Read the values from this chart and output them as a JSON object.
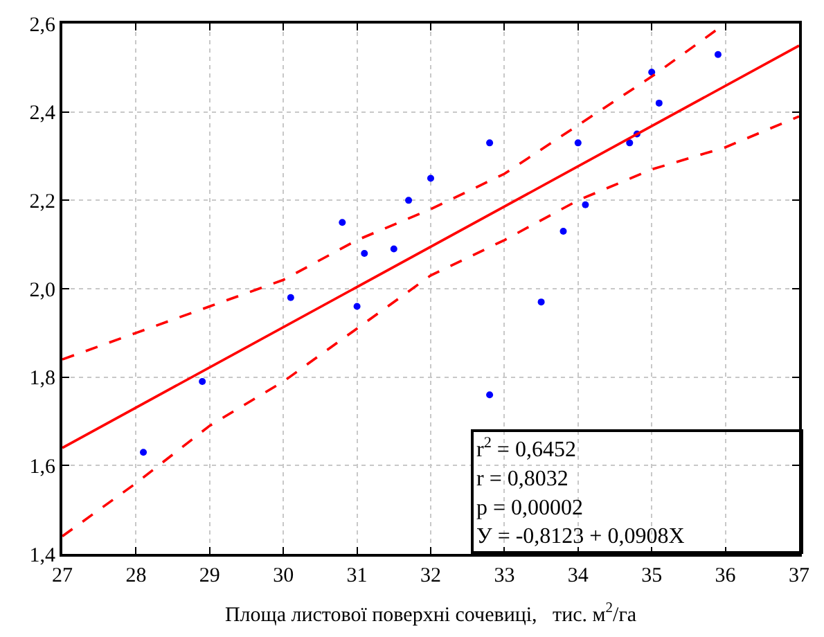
{
  "chart_data": {
    "type": "scatter",
    "xlabel": "Площа листової поверхні сочевиці,   тис. м$^{2}$/га",
    "xlim": [
      27,
      37
    ],
    "xticks": [
      27,
      28,
      29,
      30,
      31,
      32,
      33,
      34,
      35,
      36,
      37
    ],
    "ylim": [
      1.4,
      2.6
    ],
    "yticks": [
      {
        "value": 1.4,
        "label": "1,4"
      },
      {
        "value": 1.6,
        "label": "1,6"
      },
      {
        "value": 1.8,
        "label": "1,8"
      },
      {
        "value": 2.0,
        "label": "2,0"
      },
      {
        "value": 2.2,
        "label": "2,2"
      },
      {
        "value": 2.4,
        "label": "2,4"
      },
      {
        "value": 2.6,
        "label": "2,6"
      }
    ],
    "grid": true,
    "series": [
      {
        "marker": "circle",
        "color": "#0000ff",
        "x": [
          28.1,
          28.9,
          30.1,
          30.8,
          31.0,
          31.1,
          31.5,
          31.7,
          32.0,
          32.8,
          32.8,
          33.5,
          33.8,
          34.0,
          34.1,
          34.7,
          34.8,
          35.0,
          35.1,
          35.9
        ],
        "values": [
          1.63,
          1.79,
          1.98,
          2.15,
          1.96,
          2.08,
          2.09,
          2.2,
          2.25,
          2.33,
          1.76,
          1.97,
          2.13,
          2.33,
          2.19,
          2.33,
          2.35,
          2.49,
          2.42,
          2.53
        ]
      },
      {
        "type": "line",
        "line_style": "solid",
        "color": "#ff0000",
        "x": [
          27,
          37
        ],
        "values": [
          1.64,
          2.55
        ]
      },
      {
        "type": "line",
        "line_style": "dashed",
        "color": "#ff0000",
        "x": [
          27,
          28,
          29,
          30,
          31,
          32,
          33,
          34,
          35,
          36
        ],
        "values": [
          1.84,
          1.9,
          1.96,
          2.02,
          2.11,
          2.18,
          2.26,
          2.37,
          2.48,
          2.6
        ]
      },
      {
        "type": "line",
        "line_style": "dashed",
        "color": "#ff0000",
        "x": [
          27,
          28,
          29,
          30,
          31,
          32,
          33,
          34,
          35,
          36,
          37
        ],
        "values": [
          1.44,
          1.56,
          1.69,
          1.79,
          1.91,
          2.03,
          2.11,
          2.2,
          2.27,
          2.32,
          2.39
        ]
      }
    ],
    "annotations": [
      "r$^{2}$ = 0,6452",
      "r = 0,8032",
      "p = 0,00002",
      "У = -0,8123 + 0,0908X"
    ]
  }
}
